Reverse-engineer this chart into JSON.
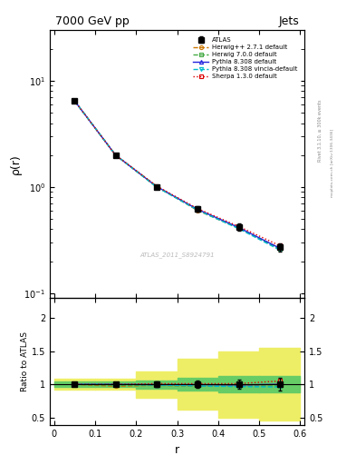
{
  "title_left": "7000 GeV pp",
  "title_right": "Jets",
  "ylabel_main": "ρ(r)",
  "ylabel_ratio": "Ratio to ATLAS",
  "xlabel": "r",
  "watermark": "ATLAS_2011_S8924791",
  "rivet_label": "Rivet 3.1.10, ≥ 300k events",
  "mcplots_label": "mcplots.cern.ch [arXiv:1306.3436]",
  "r_centers": [
    0.05,
    0.15,
    0.25,
    0.35,
    0.45,
    0.55
  ],
  "r_edges": [
    0.0,
    0.1,
    0.2,
    0.3,
    0.4,
    0.5,
    0.6
  ],
  "atlas_y": [
    6.5,
    2.0,
    1.0,
    0.62,
    0.42,
    0.27
  ],
  "atlas_yerr": [
    0.15,
    0.06,
    0.04,
    0.035,
    0.03,
    0.025
  ],
  "herwig271_y": [
    6.5,
    2.0,
    1.02,
    0.6,
    0.41,
    0.265
  ],
  "herwig700_y": [
    6.5,
    2.0,
    1.0,
    0.61,
    0.41,
    0.26
  ],
  "pythia8308_y": [
    6.5,
    2.0,
    1.01,
    0.615,
    0.415,
    0.265
  ],
  "pythia8308v_y": [
    6.5,
    2.0,
    1.0,
    0.605,
    0.405,
    0.255
  ],
  "sherpa130_y": [
    6.5,
    2.0,
    1.02,
    0.625,
    0.425,
    0.28
  ],
  "herwig271_ratio": [
    1.0,
    0.97,
    0.985,
    0.97,
    0.975,
    1.0
  ],
  "herwig700_ratio": [
    1.0,
    0.985,
    0.985,
    0.975,
    0.975,
    0.975
  ],
  "pythia8308_ratio": [
    1.0,
    1.0,
    0.995,
    0.995,
    0.99,
    1.0
  ],
  "pythia8308v_ratio": [
    1.0,
    1.0,
    0.99,
    0.975,
    0.965,
    0.96
  ],
  "sherpa130_ratio": [
    1.0,
    1.0,
    1.01,
    1.01,
    1.01,
    1.05
  ],
  "atlas_band_green": [
    0.04,
    0.04,
    0.06,
    0.1,
    0.12,
    0.12
  ],
  "atlas_band_yellow": [
    0.08,
    0.08,
    0.2,
    0.38,
    0.5,
    0.55
  ],
  "ylim_main": [
    0.09,
    30
  ],
  "ylim_ratio": [
    0.38,
    2.3
  ],
  "color_atlas": "#000000",
  "color_herwig271": "#cc7700",
  "color_herwig700": "#44aa44",
  "color_pythia8308": "#2222dd",
  "color_pythia8308v": "#00bbcc",
  "color_sherpa130": "#dd0000",
  "color_green_band": "#66cc66",
  "color_yellow_band": "#eeee66"
}
